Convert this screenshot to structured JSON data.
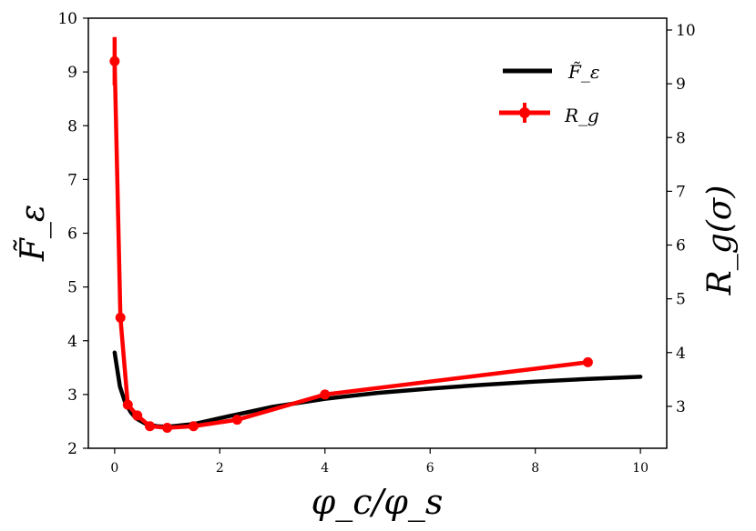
{
  "chart_data": {
    "type": "line",
    "title": "",
    "xlabel": "φ_c/φ_s",
    "ylabel_left": "F̃_ε",
    "ylabel_right": "R_g(σ)",
    "xlim": [
      -0.5,
      10.5
    ],
    "ylim_left": [
      2,
      10
    ],
    "ylim_right": [
      2.22,
      10.22
    ],
    "xticks": [
      0,
      2,
      4,
      6,
      8,
      10
    ],
    "yticks_left": [
      2,
      3,
      4,
      5,
      6,
      7,
      8,
      9,
      10
    ],
    "yticks_right": [
      3,
      4,
      5,
      6,
      7,
      8,
      9,
      10
    ],
    "grid": false,
    "legend_position": "top-right",
    "series": [
      {
        "name": "F̃_ε",
        "axis": "left",
        "color": "#000000",
        "style": "line",
        "x": [
          0.0,
          0.1,
          0.2,
          0.3,
          0.4,
          0.6,
          0.8,
          1.0,
          1.5,
          2.0,
          3.0,
          4.0,
          5.0,
          6.0,
          7.0,
          8.0,
          9.0,
          10.0
        ],
        "y": [
          3.78,
          3.15,
          2.85,
          2.68,
          2.56,
          2.45,
          2.41,
          2.4,
          2.45,
          2.56,
          2.77,
          2.92,
          3.03,
          3.11,
          3.18,
          3.24,
          3.29,
          3.33
        ]
      },
      {
        "name": "R_g",
        "axis": "right",
        "color": "#ff0000",
        "style": "line-markers-errorbars",
        "x": [
          0.0,
          0.11,
          0.25,
          0.43,
          0.67,
          1.0,
          1.5,
          2.33,
          4.0,
          9.0
        ],
        "y": [
          9.42,
          4.65,
          3.03,
          2.83,
          2.63,
          2.6,
          2.63,
          2.75,
          3.22,
          3.82
        ],
        "yerr": [
          0.45,
          0.05,
          0.05,
          0.04,
          0.03,
          0.03,
          0.03,
          0.04,
          0.05,
          0.03
        ]
      }
    ]
  }
}
